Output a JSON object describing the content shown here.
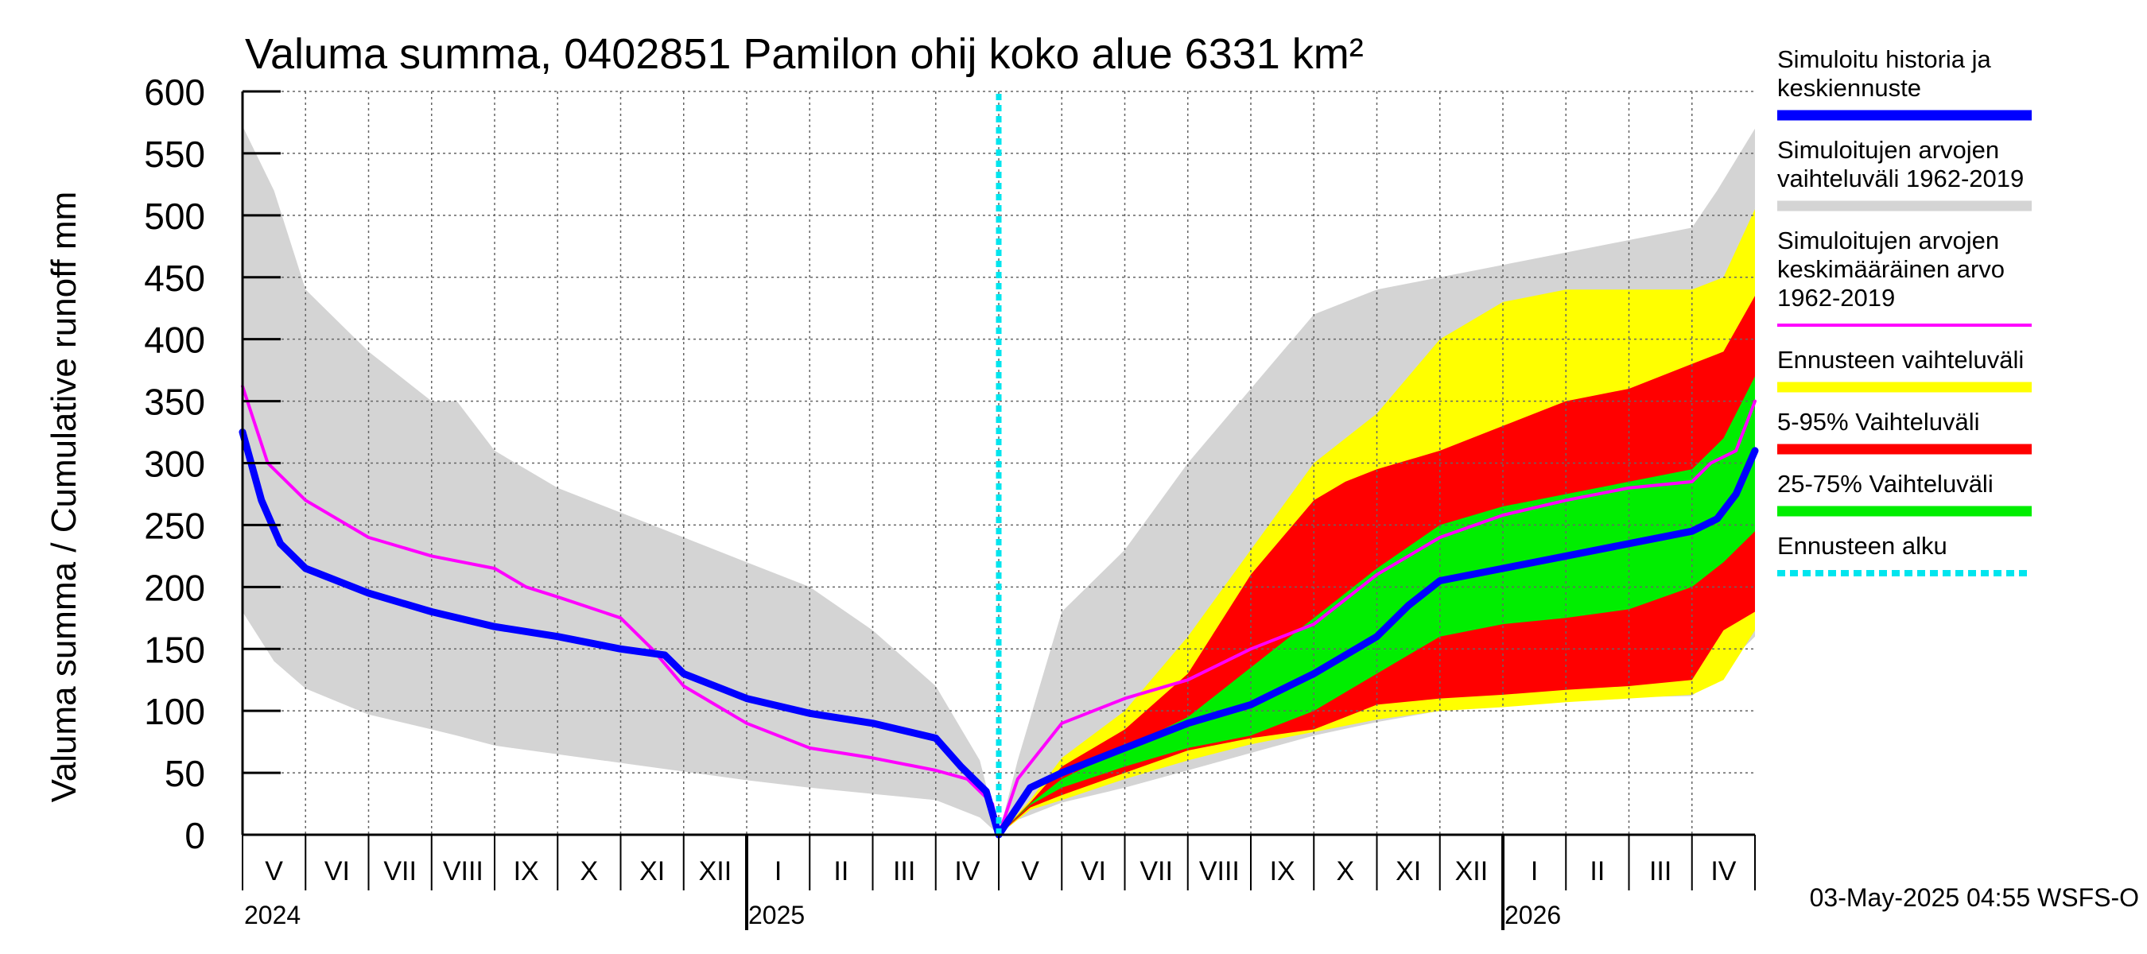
{
  "chart_data": {
    "type": "area",
    "title": "Valuma summa, 0402851 Pamilon ohij koko alue 6331 km²",
    "ylabel": "Valuma summa / Cumulative runoff    mm",
    "xlabel": "",
    "ylim": [
      0,
      600
    ],
    "yticks": [
      0,
      50,
      100,
      150,
      200,
      250,
      300,
      350,
      400,
      450,
      500,
      550,
      600
    ],
    "grid": true,
    "x_unit": "months since 2024-04-01",
    "xlim": [
      1,
      25
    ],
    "forecast_start": 13,
    "month_labels": [
      {
        "label": "V",
        "x": 1.5
      },
      {
        "label": "VI",
        "x": 2.5
      },
      {
        "label": "VII",
        "x": 3.5
      },
      {
        "label": "VIII",
        "x": 4.5
      },
      {
        "label": "IX",
        "x": 5.5
      },
      {
        "label": "X",
        "x": 6.5
      },
      {
        "label": "XI",
        "x": 7.5
      },
      {
        "label": "XII",
        "x": 8.5
      },
      {
        "label": "I",
        "x": 9.5
      },
      {
        "label": "II",
        "x": 10.5
      },
      {
        "label": "III",
        "x": 11.5
      },
      {
        "label": "IV",
        "x": 12.5
      },
      {
        "label": "V",
        "x": 13.5
      },
      {
        "label": "VI",
        "x": 14.5
      },
      {
        "label": "VII",
        "x": 15.5
      },
      {
        "label": "VIII",
        "x": 16.5
      },
      {
        "label": "IX",
        "x": 17.5
      },
      {
        "label": "X",
        "x": 18.5
      },
      {
        "label": "XI",
        "x": 19.5
      },
      {
        "label": "XII",
        "x": 20.5
      },
      {
        "label": "I",
        "x": 21.5
      },
      {
        "label": "II",
        "x": 22.5
      },
      {
        "label": "III",
        "x": 23.5
      },
      {
        "label": "IV",
        "x": 24.5
      }
    ],
    "year_labels": [
      {
        "label": "2024",
        "x": 1
      },
      {
        "label": "2025",
        "x": 9
      },
      {
        "label": "2026",
        "x": 21
      }
    ],
    "year_dividers": [
      9,
      21
    ],
    "bands": [
      {
        "name": "Simuloitujen arvojen vaihteluväli 1962-2019",
        "color": "#d4d4d4",
        "x": [
          1,
          1.5,
          2,
          3,
          4,
          4.4,
          5,
          6,
          7,
          8,
          9,
          10,
          11,
          12,
          12.7,
          13,
          13.3,
          14,
          15,
          16,
          17,
          18,
          19,
          20,
          21,
          22,
          23,
          24,
          24.4,
          25
        ],
        "upper": [
          572,
          520,
          440,
          390,
          350,
          350,
          310,
          280,
          260,
          240,
          220,
          200,
          165,
          120,
          60,
          0,
          60,
          180,
          230,
          300,
          360,
          420,
          440,
          450,
          460,
          470,
          480,
          490,
          520,
          570
        ],
        "lower": [
          180,
          140,
          118,
          97,
          85,
          80,
          72,
          65,
          58,
          51,
          44,
          38,
          33,
          28,
          14,
          0,
          12,
          26,
          38,
          52,
          66,
          80,
          91,
          100,
          105,
          108,
          111,
          112,
          130,
          160
        ]
      },
      {
        "name": "Ennusteen vaihteluväli",
        "color": "#ffff00",
        "x": [
          13,
          13.5,
          14,
          15,
          16,
          17,
          18,
          19,
          20,
          21,
          22,
          23,
          24,
          24.5,
          25
        ],
        "upper": [
          0,
          28,
          62,
          100,
          160,
          230,
          300,
          340,
          400,
          430,
          440,
          440,
          440,
          450,
          505
        ],
        "lower": [
          0,
          20,
          28,
          45,
          60,
          73,
          83,
          93,
          100,
          103,
          107,
          110,
          113,
          125,
          165
        ]
      },
      {
        "name": "5-95% Vaihteluväli",
        "color": "#ff0000",
        "x": [
          13,
          13.5,
          14,
          15,
          16,
          17,
          18,
          18.5,
          19,
          20,
          21,
          22,
          23,
          24,
          24.5,
          25
        ],
        "upper": [
          0,
          26,
          55,
          85,
          130,
          210,
          270,
          285,
          295,
          310,
          330,
          350,
          360,
          380,
          390,
          435
        ],
        "lower": [
          0,
          22,
          32,
          50,
          68,
          78,
          85,
          95,
          105,
          110,
          113,
          117,
          120,
          125,
          165,
          180
        ]
      },
      {
        "name": "25-75% Vaihteluväli",
        "color": "#00ee00",
        "x": [
          13,
          13.5,
          14,
          15,
          16,
          17,
          18,
          19,
          20,
          21,
          22,
          23,
          24,
          24.5,
          25
        ],
        "upper": [
          0,
          25,
          45,
          70,
          95,
          135,
          175,
          215,
          250,
          265,
          275,
          285,
          295,
          320,
          370
        ],
        "lower": [
          0,
          24,
          38,
          55,
          70,
          80,
          100,
          130,
          160,
          170,
          175,
          182,
          200,
          220,
          245
        ]
      }
    ],
    "series": [
      {
        "name": "Simuloitujen arvojen keskimääräinen arvo 1962-2019",
        "color": "#ff00ff",
        "width": 4,
        "x": [
          1,
          1.4,
          2,
          3,
          4,
          5,
          5.5,
          6,
          7,
          7.5,
          8,
          9,
          10,
          11,
          12,
          12.5,
          12.9,
          13,
          13.3,
          14,
          15,
          16,
          17,
          18,
          19,
          20,
          21,
          22,
          23,
          24,
          24.3,
          24.7,
          25
        ],
        "y": [
          362,
          300,
          270,
          240,
          225,
          215,
          200,
          192,
          175,
          150,
          120,
          90,
          70,
          62,
          52,
          45,
          25,
          0,
          45,
          90,
          110,
          125,
          150,
          170,
          210,
          240,
          258,
          270,
          280,
          285,
          300,
          310,
          350
        ]
      },
      {
        "name": "Simuloitu historia ja keskiennuste",
        "color": "#0000ff",
        "width": 9,
        "x": [
          1,
          1.3,
          1.6,
          2,
          3,
          4,
          5,
          6,
          7,
          7.7,
          8,
          8.5,
          9,
          10,
          11,
          12,
          12.4,
          12.8,
          13,
          13.5,
          14,
          15,
          16,
          17,
          18,
          19,
          19.5,
          20,
          21,
          22,
          23,
          24,
          24.4,
          24.7,
          25
        ],
        "y": [
          325,
          270,
          235,
          215,
          195,
          180,
          168,
          160,
          150,
          145,
          130,
          120,
          110,
          98,
          90,
          78,
          55,
          35,
          0,
          38,
          50,
          70,
          90,
          105,
          130,
          160,
          185,
          205,
          215,
          225,
          235,
          245,
          255,
          275,
          310
        ]
      },
      {
        "name": "Ennusteen alku",
        "color": "#00e5ee",
        "width": 7,
        "dashed": true,
        "x": [
          13,
          13
        ],
        "y": [
          0,
          600
        ]
      }
    ],
    "legend": [
      {
        "lines": [
          "Simuloitu historia ja",
          "keskiennuste"
        ],
        "color": "#0000ff",
        "style": "line"
      },
      {
        "lines": [
          "Simuloitujen arvojen",
          "vaihteluväli 1962-2019"
        ],
        "color": "#d4d4d4",
        "style": "line"
      },
      {
        "lines": [
          "Simuloitujen arvojen",
          "keskimääräinen arvo",
          "   1962-2019"
        ],
        "color": "#ff00ff",
        "style": "thin"
      },
      {
        "lines": [
          "Ennusteen vaihteluväli"
        ],
        "color": "#ffff00",
        "style": "line"
      },
      {
        "lines": [
          "5-95% Vaihteluväli"
        ],
        "color": "#ff0000",
        "style": "line"
      },
      {
        "lines": [
          "25-75% Vaihteluväli"
        ],
        "color": "#00ee00",
        "style": "line"
      },
      {
        "lines": [
          "Ennusteen alku"
        ],
        "color": "#00e5ee",
        "style": "dashed"
      }
    ],
    "timestamp": "03-May-2025 04:55 WSFS-O"
  }
}
